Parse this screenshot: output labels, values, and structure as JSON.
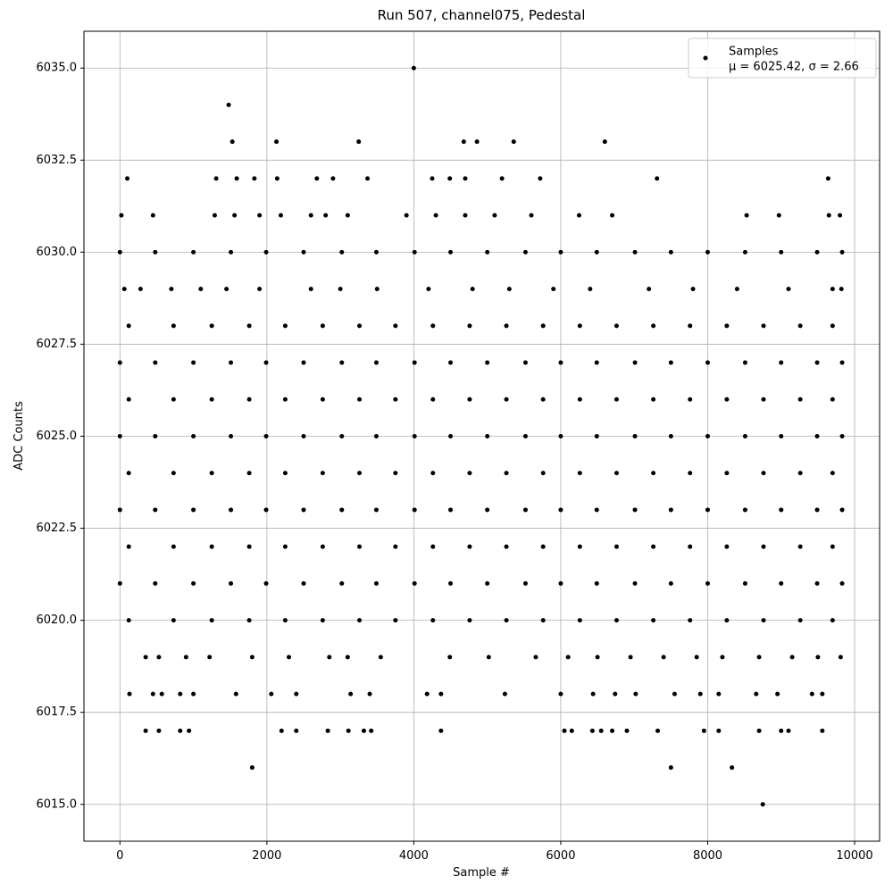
{
  "chart_data": {
    "type": "scatter",
    "title": "Run 507, channel075, Pedestal",
    "x_label": "Sample #",
    "y_label": "ADC Counts",
    "legend_note": "μ = 6025.42, σ = 2.66",
    "legend_position": "upper right",
    "grid": true,
    "xlim": [
      -490,
      10340
    ],
    "ylim": [
      6014,
      6036
    ],
    "xticks": [
      0,
      2000,
      4000,
      6000,
      8000,
      10000
    ],
    "yticks": [
      {
        "value": 6015,
        "label": "6015.0"
      },
      {
        "value": 6017.5,
        "label": "6017.5"
      },
      {
        "value": 6020,
        "label": "6020.0"
      },
      {
        "value": 6022.5,
        "label": "6022.5"
      },
      {
        "value": 6025,
        "label": "6025.0"
      },
      {
        "value": 6027.5,
        "label": "6027.5"
      },
      {
        "value": 6030,
        "label": "6030.0"
      },
      {
        "value": 6032.5,
        "label": "6032.5"
      },
      {
        "value": 6035,
        "label": "6035.0"
      }
    ],
    "series": [
      {
        "name": "Samples",
        "color": "#000000",
        "x": [
          1480,
          1530,
          2130,
          3250,
          4000,
          4680,
          4860,
          5360,
          6600,
          1800,
          7500,
          8330,
          8750,
          100,
          1310,
          1590,
          1830,
          2140,
          2680,
          2900,
          3370,
          4250,
          4490,
          4700,
          5200,
          5720,
          7310,
          9640,
          20,
          450,
          1290,
          1560,
          1900,
          2190,
          2600,
          2800,
          3100,
          3900,
          4300,
          4700,
          5100,
          5600,
          6250,
          6700,
          8530,
          8970,
          9650,
          9800,
          0,
          480,
          1000,
          1510,
          1990,
          2500,
          3020,
          3490,
          4010,
          4500,
          5000,
          5520,
          6000,
          6490,
          7010,
          7500,
          8000,
          8510,
          9000,
          9490,
          9830,
          60,
          280,
          700,
          1100,
          1450,
          1900,
          2600,
          3000,
          3500,
          4200,
          4800,
          5300,
          5900,
          6400,
          7200,
          7800,
          8400,
          9100,
          9700,
          9820,
          120,
          730,
          1250,
          1760,
          2250,
          2760,
          3260,
          3750,
          4260,
          4760,
          5260,
          5760,
          6260,
          6760,
          7260,
          7760,
          8260,
          8760,
          9260,
          9700,
          0,
          480,
          1000,
          1510,
          1990,
          2500,
          3020,
          3490,
          4010,
          4500,
          5000,
          5520,
          6000,
          6490,
          7010,
          7500,
          8000,
          8510,
          9000,
          9490,
          9830,
          120,
          730,
          1250,
          1760,
          2250,
          2760,
          3260,
          3750,
          4260,
          4760,
          5260,
          5760,
          6260,
          6760,
          7260,
          7760,
          8260,
          8760,
          9260,
          9700,
          0,
          480,
          1000,
          1510,
          1990,
          2500,
          3020,
          3490,
          4010,
          4500,
          5000,
          5520,
          6000,
          6490,
          7010,
          7500,
          8000,
          8510,
          9000,
          9490,
          9830,
          120,
          730,
          1250,
          1760,
          2250,
          2760,
          3260,
          3750,
          4260,
          4760,
          5260,
          5760,
          6260,
          6760,
          7260,
          7760,
          8260,
          8760,
          9260,
          9700,
          0,
          480,
          1000,
          1510,
          1990,
          2500,
          3020,
          3490,
          4010,
          4500,
          5000,
          5520,
          6000,
          6490,
          7010,
          7500,
          8000,
          8510,
          9000,
          9490,
          9830,
          120,
          730,
          1250,
          1760,
          2250,
          2760,
          3260,
          3750,
          4260,
          4760,
          5260,
          5760,
          6260,
          6760,
          7260,
          7760,
          8260,
          8760,
          9260,
          9700,
          0,
          480,
          1000,
          1510,
          1990,
          2500,
          3020,
          3490,
          4010,
          4500,
          5000,
          5520,
          6000,
          6490,
          7010,
          7500,
          8000,
          8510,
          9000,
          9490,
          9830,
          120,
          730,
          1250,
          1760,
          2250,
          2760,
          3260,
          3750,
          4260,
          4760,
          5260,
          5760,
          6260,
          6760,
          7260,
          7760,
          8260,
          8760,
          9260,
          9700,
          350,
          530,
          900,
          1220,
          1800,
          2300,
          2850,
          3100,
          3550,
          4490,
          5020,
          5660,
          6100,
          6500,
          6950,
          7400,
          7850,
          8200,
          8700,
          9150,
          9500,
          9810,
          130,
          450,
          570,
          820,
          1000,
          1580,
          2060,
          2400,
          3140,
          3400,
          4180,
          4370,
          5240,
          6000,
          6440,
          6740,
          7020,
          7550,
          7900,
          8150,
          8660,
          8950,
          9420,
          9560,
          350,
          530,
          820,
          940,
          2200,
          2400,
          2830,
          3110,
          3320,
          3420,
          4370,
          6050,
          6150,
          6430,
          6550,
          6700,
          6900,
          7320,
          7950,
          8150,
          8700,
          9000,
          9100,
          9560
        ],
        "y": [
          6034,
          6033,
          6033,
          6033,
          6035,
          6033,
          6033,
          6033,
          6033,
          6016,
          6016,
          6016,
          6015,
          6032,
          6032,
          6032,
          6032,
          6032,
          6032,
          6032,
          6032,
          6032,
          6032,
          6032,
          6032,
          6032,
          6032,
          6032,
          6031,
          6031,
          6031,
          6031,
          6031,
          6031,
          6031,
          6031,
          6031,
          6031,
          6031,
          6031,
          6031,
          6031,
          6031,
          6031,
          6031,
          6031,
          6031,
          6031,
          6030,
          6030,
          6030,
          6030,
          6030,
          6030,
          6030,
          6030,
          6030,
          6030,
          6030,
          6030,
          6030,
          6030,
          6030,
          6030,
          6030,
          6030,
          6030,
          6030,
          6030,
          6029,
          6029,
          6029,
          6029,
          6029,
          6029,
          6029,
          6029,
          6029,
          6029,
          6029,
          6029,
          6029,
          6029,
          6029,
          6029,
          6029,
          6029,
          6029,
          6029,
          6028,
          6028,
          6028,
          6028,
          6028,
          6028,
          6028,
          6028,
          6028,
          6028,
          6028,
          6028,
          6028,
          6028,
          6028,
          6028,
          6028,
          6028,
          6028,
          6028,
          6027,
          6027,
          6027,
          6027,
          6027,
          6027,
          6027,
          6027,
          6027,
          6027,
          6027,
          6027,
          6027,
          6027,
          6027,
          6027,
          6027,
          6027,
          6027,
          6027,
          6027,
          6026,
          6026,
          6026,
          6026,
          6026,
          6026,
          6026,
          6026,
          6026,
          6026,
          6026,
          6026,
          6026,
          6026,
          6026,
          6026,
          6026,
          6026,
          6026,
          6026,
          6025,
          6025,
          6025,
          6025,
          6025,
          6025,
          6025,
          6025,
          6025,
          6025,
          6025,
          6025,
          6025,
          6025,
          6025,
          6025,
          6025,
          6025,
          6025,
          6025,
          6025,
          6024,
          6024,
          6024,
          6024,
          6024,
          6024,
          6024,
          6024,
          6024,
          6024,
          6024,
          6024,
          6024,
          6024,
          6024,
          6024,
          6024,
          6024,
          6024,
          6024,
          6023,
          6023,
          6023,
          6023,
          6023,
          6023,
          6023,
          6023,
          6023,
          6023,
          6023,
          6023,
          6023,
          6023,
          6023,
          6023,
          6023,
          6023,
          6023,
          6023,
          6023,
          6022,
          6022,
          6022,
          6022,
          6022,
          6022,
          6022,
          6022,
          6022,
          6022,
          6022,
          6022,
          6022,
          6022,
          6022,
          6022,
          6022,
          6022,
          6022,
          6022,
          6021,
          6021,
          6021,
          6021,
          6021,
          6021,
          6021,
          6021,
          6021,
          6021,
          6021,
          6021,
          6021,
          6021,
          6021,
          6021,
          6021,
          6021,
          6021,
          6021,
          6021,
          6020,
          6020,
          6020,
          6020,
          6020,
          6020,
          6020,
          6020,
          6020,
          6020,
          6020,
          6020,
          6020,
          6020,
          6020,
          6020,
          6020,
          6020,
          6020,
          6020,
          6019,
          6019,
          6019,
          6019,
          6019,
          6019,
          6019,
          6019,
          6019,
          6019,
          6019,
          6019,
          6019,
          6019,
          6019,
          6019,
          6019,
          6019,
          6019,
          6019,
          6019,
          6019,
          6018,
          6018,
          6018,
          6018,
          6018,
          6018,
          6018,
          6018,
          6018,
          6018,
          6018,
          6018,
          6018,
          6018,
          6018,
          6018,
          6018,
          6018,
          6018,
          6018,
          6018,
          6018,
          6018,
          6018,
          6017,
          6017,
          6017,
          6017,
          6017,
          6017,
          6017,
          6017,
          6017,
          6017,
          6017,
          6017,
          6017,
          6017,
          6017,
          6017,
          6017,
          6017,
          6017,
          6017,
          6017,
          6017,
          6017,
          6017
        ]
      }
    ]
  }
}
